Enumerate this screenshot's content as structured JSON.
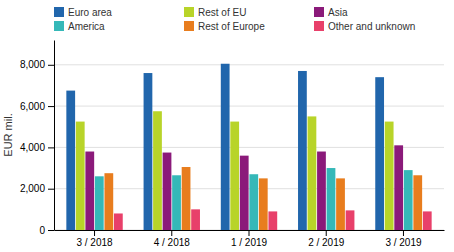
{
  "chart_data": {
    "type": "bar",
    "ylabel": "EUR mil.",
    "categories": [
      "3 / 2018",
      "4 / 2018",
      "1 / 2019",
      "2 / 2019",
      "3 / 2019"
    ],
    "series": [
      {
        "name": "Euro area",
        "color": "#2166ac",
        "values": [
          6750,
          7600,
          8050,
          7700,
          7400
        ]
      },
      {
        "name": "Rest of EU",
        "color": "#b8d429",
        "values": [
          5250,
          5750,
          5250,
          5500,
          5250
        ]
      },
      {
        "name": "Asia",
        "color": "#8b1a7a",
        "values": [
          3800,
          3750,
          3600,
          3800,
          4100
        ]
      },
      {
        "name": "America",
        "color": "#35b8b8",
        "values": [
          2600,
          2650,
          2700,
          3000,
          2900
        ]
      },
      {
        "name": "Rest of Europe",
        "color": "#e87d1e",
        "values": [
          2750,
          3050,
          2500,
          2500,
          2650
        ]
      },
      {
        "name": "Other and unknown",
        "color": "#e8406a",
        "values": [
          800,
          1000,
          900,
          950,
          900
        ]
      }
    ],
    "ylim": [
      0,
      9200
    ],
    "yticks": [
      0,
      {
        "value": 2000,
        "label": "2,000"
      },
      {
        "value": 4000,
        "label": "4,000"
      },
      {
        "value": 6000,
        "label": "6,000"
      },
      {
        "value": 8000,
        "label": "8,000"
      }
    ],
    "grid": true,
    "legend": "upper left"
  }
}
